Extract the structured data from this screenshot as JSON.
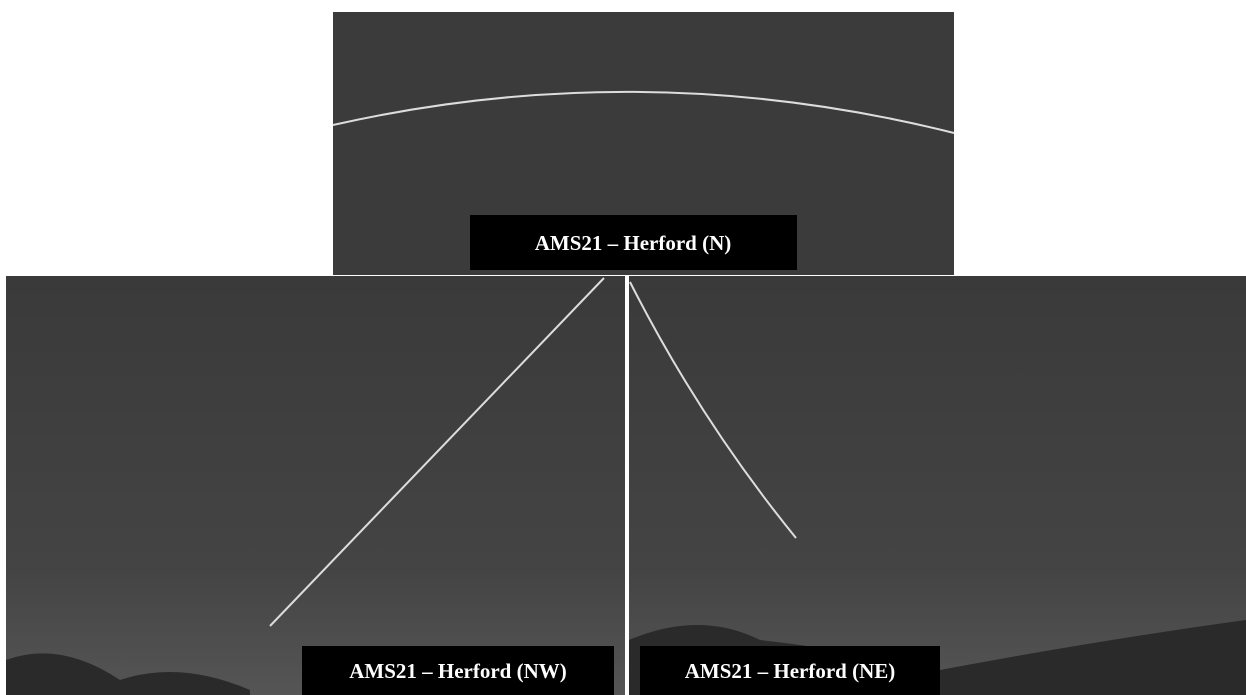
{
  "panels": [
    {
      "label": "AMS21 – Herford (N)"
    },
    {
      "label": "AMS21 – Herford (NW)"
    },
    {
      "label": "AMS21 – Herford (NE)"
    }
  ]
}
